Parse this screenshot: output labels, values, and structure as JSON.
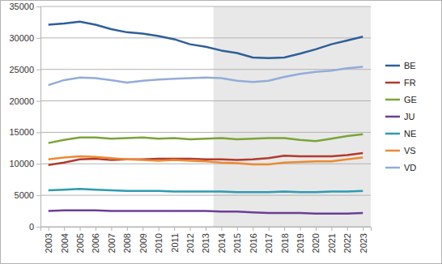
{
  "chart_data": {
    "type": "line",
    "categories": [
      "2003",
      "2004",
      "2005",
      "2006",
      "2007",
      "2008",
      "2009",
      "2010",
      "2011",
      "2012",
      "2013",
      "2014",
      "2015",
      "2016",
      "2017",
      "2018",
      "2019",
      "2020",
      "2021",
      "2022",
      "2023"
    ],
    "series": [
      {
        "name": "BE",
        "color": "#2f5f98",
        "values": [
          32100,
          32300,
          32600,
          32100,
          31400,
          30900,
          30700,
          30300,
          29800,
          29000,
          28600,
          28000,
          27600,
          26900,
          26800,
          26900,
          27500,
          28200,
          29000,
          29600,
          30200
        ]
      },
      {
        "name": "FR",
        "color": "#b23a2e",
        "values": [
          9800,
          10200,
          10700,
          10800,
          10600,
          10700,
          10700,
          10800,
          10800,
          10800,
          10700,
          10700,
          10600,
          10700,
          10900,
          11300,
          11200,
          11200,
          11200,
          11400,
          11700
        ]
      },
      {
        "name": "GE",
        "color": "#7aa43a",
        "values": [
          13300,
          13800,
          14200,
          14200,
          14000,
          14100,
          14200,
          14000,
          14100,
          13900,
          14000,
          14100,
          13900,
          14000,
          14100,
          14100,
          13800,
          13600,
          14000,
          14400,
          14700
        ]
      },
      {
        "name": "JU",
        "color": "#6a3f97",
        "values": [
          2500,
          2600,
          2600,
          2600,
          2500,
          2500,
          2500,
          2500,
          2500,
          2500,
          2500,
          2400,
          2400,
          2300,
          2200,
          2200,
          2200,
          2100,
          2100,
          2100,
          2200
        ]
      },
      {
        "name": "NE",
        "color": "#2e9bb0",
        "values": [
          5800,
          5900,
          6000,
          5900,
          5800,
          5700,
          5700,
          5700,
          5600,
          5600,
          5600,
          5600,
          5500,
          5500,
          5500,
          5600,
          5500,
          5500,
          5600,
          5600,
          5700
        ]
      },
      {
        "name": "VS",
        "color": "#ec8a33",
        "values": [
          10700,
          11000,
          11200,
          11100,
          10900,
          10700,
          10600,
          10500,
          10600,
          10500,
          10400,
          10200,
          10100,
          9900,
          9900,
          10200,
          10300,
          10400,
          10400,
          10700,
          11000
        ]
      },
      {
        "name": "VD",
        "color": "#93acd8",
        "values": [
          22500,
          23300,
          23700,
          23600,
          23300,
          22900,
          23200,
          23400,
          23500,
          23600,
          23700,
          23600,
          23200,
          23000,
          23200,
          23800,
          24300,
          24600,
          24800,
          25200,
          25400
        ]
      }
    ],
    "ylim": [
      0,
      35000
    ],
    "yticks": [
      0,
      5000,
      10000,
      15000,
      20000,
      25000,
      30000,
      35000
    ],
    "grid": true,
    "legend": "right",
    "shaded_range": [
      "2014",
      "2023"
    ]
  }
}
